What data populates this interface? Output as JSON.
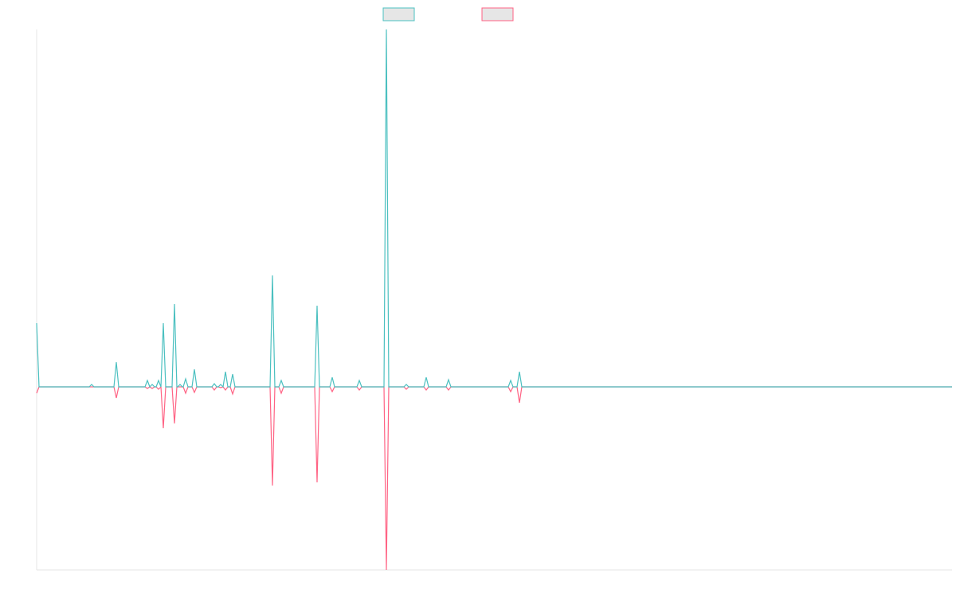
{
  "chart_data": {
    "type": "line",
    "x": [
      0,
      3,
      66,
      69,
      72,
      97,
      100,
      103,
      136,
      139,
      142,
      145,
      148,
      150,
      153,
      156,
      159,
      162,
      170,
      173,
      176,
      177,
      180,
      183,
      184,
      187,
      190,
      195,
      198,
      201,
      220,
      223,
      226,
      228,
      231,
      234,
      237,
      240,
      243,
      246,
      249,
      293,
      296,
      299,
      304,
      307,
      310,
      349,
      352,
      355,
      368,
      371,
      374,
      402,
      405,
      408,
      436,
      439,
      442,
      461,
      464,
      467,
      486,
      489,
      492,
      514,
      517,
      520,
      592,
      595,
      598,
      603,
      606,
      609,
      1149
    ],
    "series": [
      {
        "color": "#4bc0c0",
        "values": [
          80,
          0,
          0,
          3,
          0,
          0,
          31,
          0,
          0,
          8,
          0,
          3,
          0,
          0,
          8,
          0,
          80,
          0,
          0,
          104,
          0,
          0,
          3,
          0,
          0,
          10,
          0,
          0,
          22,
          0,
          0,
          4,
          0,
          0,
          3,
          0,
          19,
          0,
          0,
          16,
          0,
          0,
          140,
          0,
          0,
          8,
          0,
          0,
          102,
          0,
          0,
          12,
          0,
          0,
          8,
          0,
          0,
          449,
          0,
          0,
          3,
          0,
          0,
          12,
          0,
          0,
          9,
          0,
          0,
          8,
          0,
          0,
          19,
          0,
          0
        ]
      },
      {
        "color": "#ff6384",
        "values": [
          -8,
          0,
          0,
          0,
          0,
          0,
          -14,
          0,
          0,
          -2,
          0,
          -2,
          0,
          0,
          -3,
          0,
          -52,
          0,
          0,
          -46,
          0,
          0,
          0,
          0,
          0,
          -8,
          0,
          0,
          -7,
          0,
          0,
          -4,
          0,
          0,
          -1,
          0,
          -4,
          0,
          0,
          -9,
          0,
          0,
          -124,
          0,
          0,
          -8,
          0,
          0,
          -120,
          0,
          0,
          -6,
          0,
          0,
          -4,
          0,
          0,
          -230,
          0,
          0,
          -3,
          0,
          0,
          -4,
          0,
          0,
          -4,
          0,
          0,
          -6,
          0,
          0,
          -20,
          0,
          0
        ]
      }
    ],
    "xlim": [
      0,
      1149
    ],
    "ylim": [
      -230,
      449
    ]
  }
}
